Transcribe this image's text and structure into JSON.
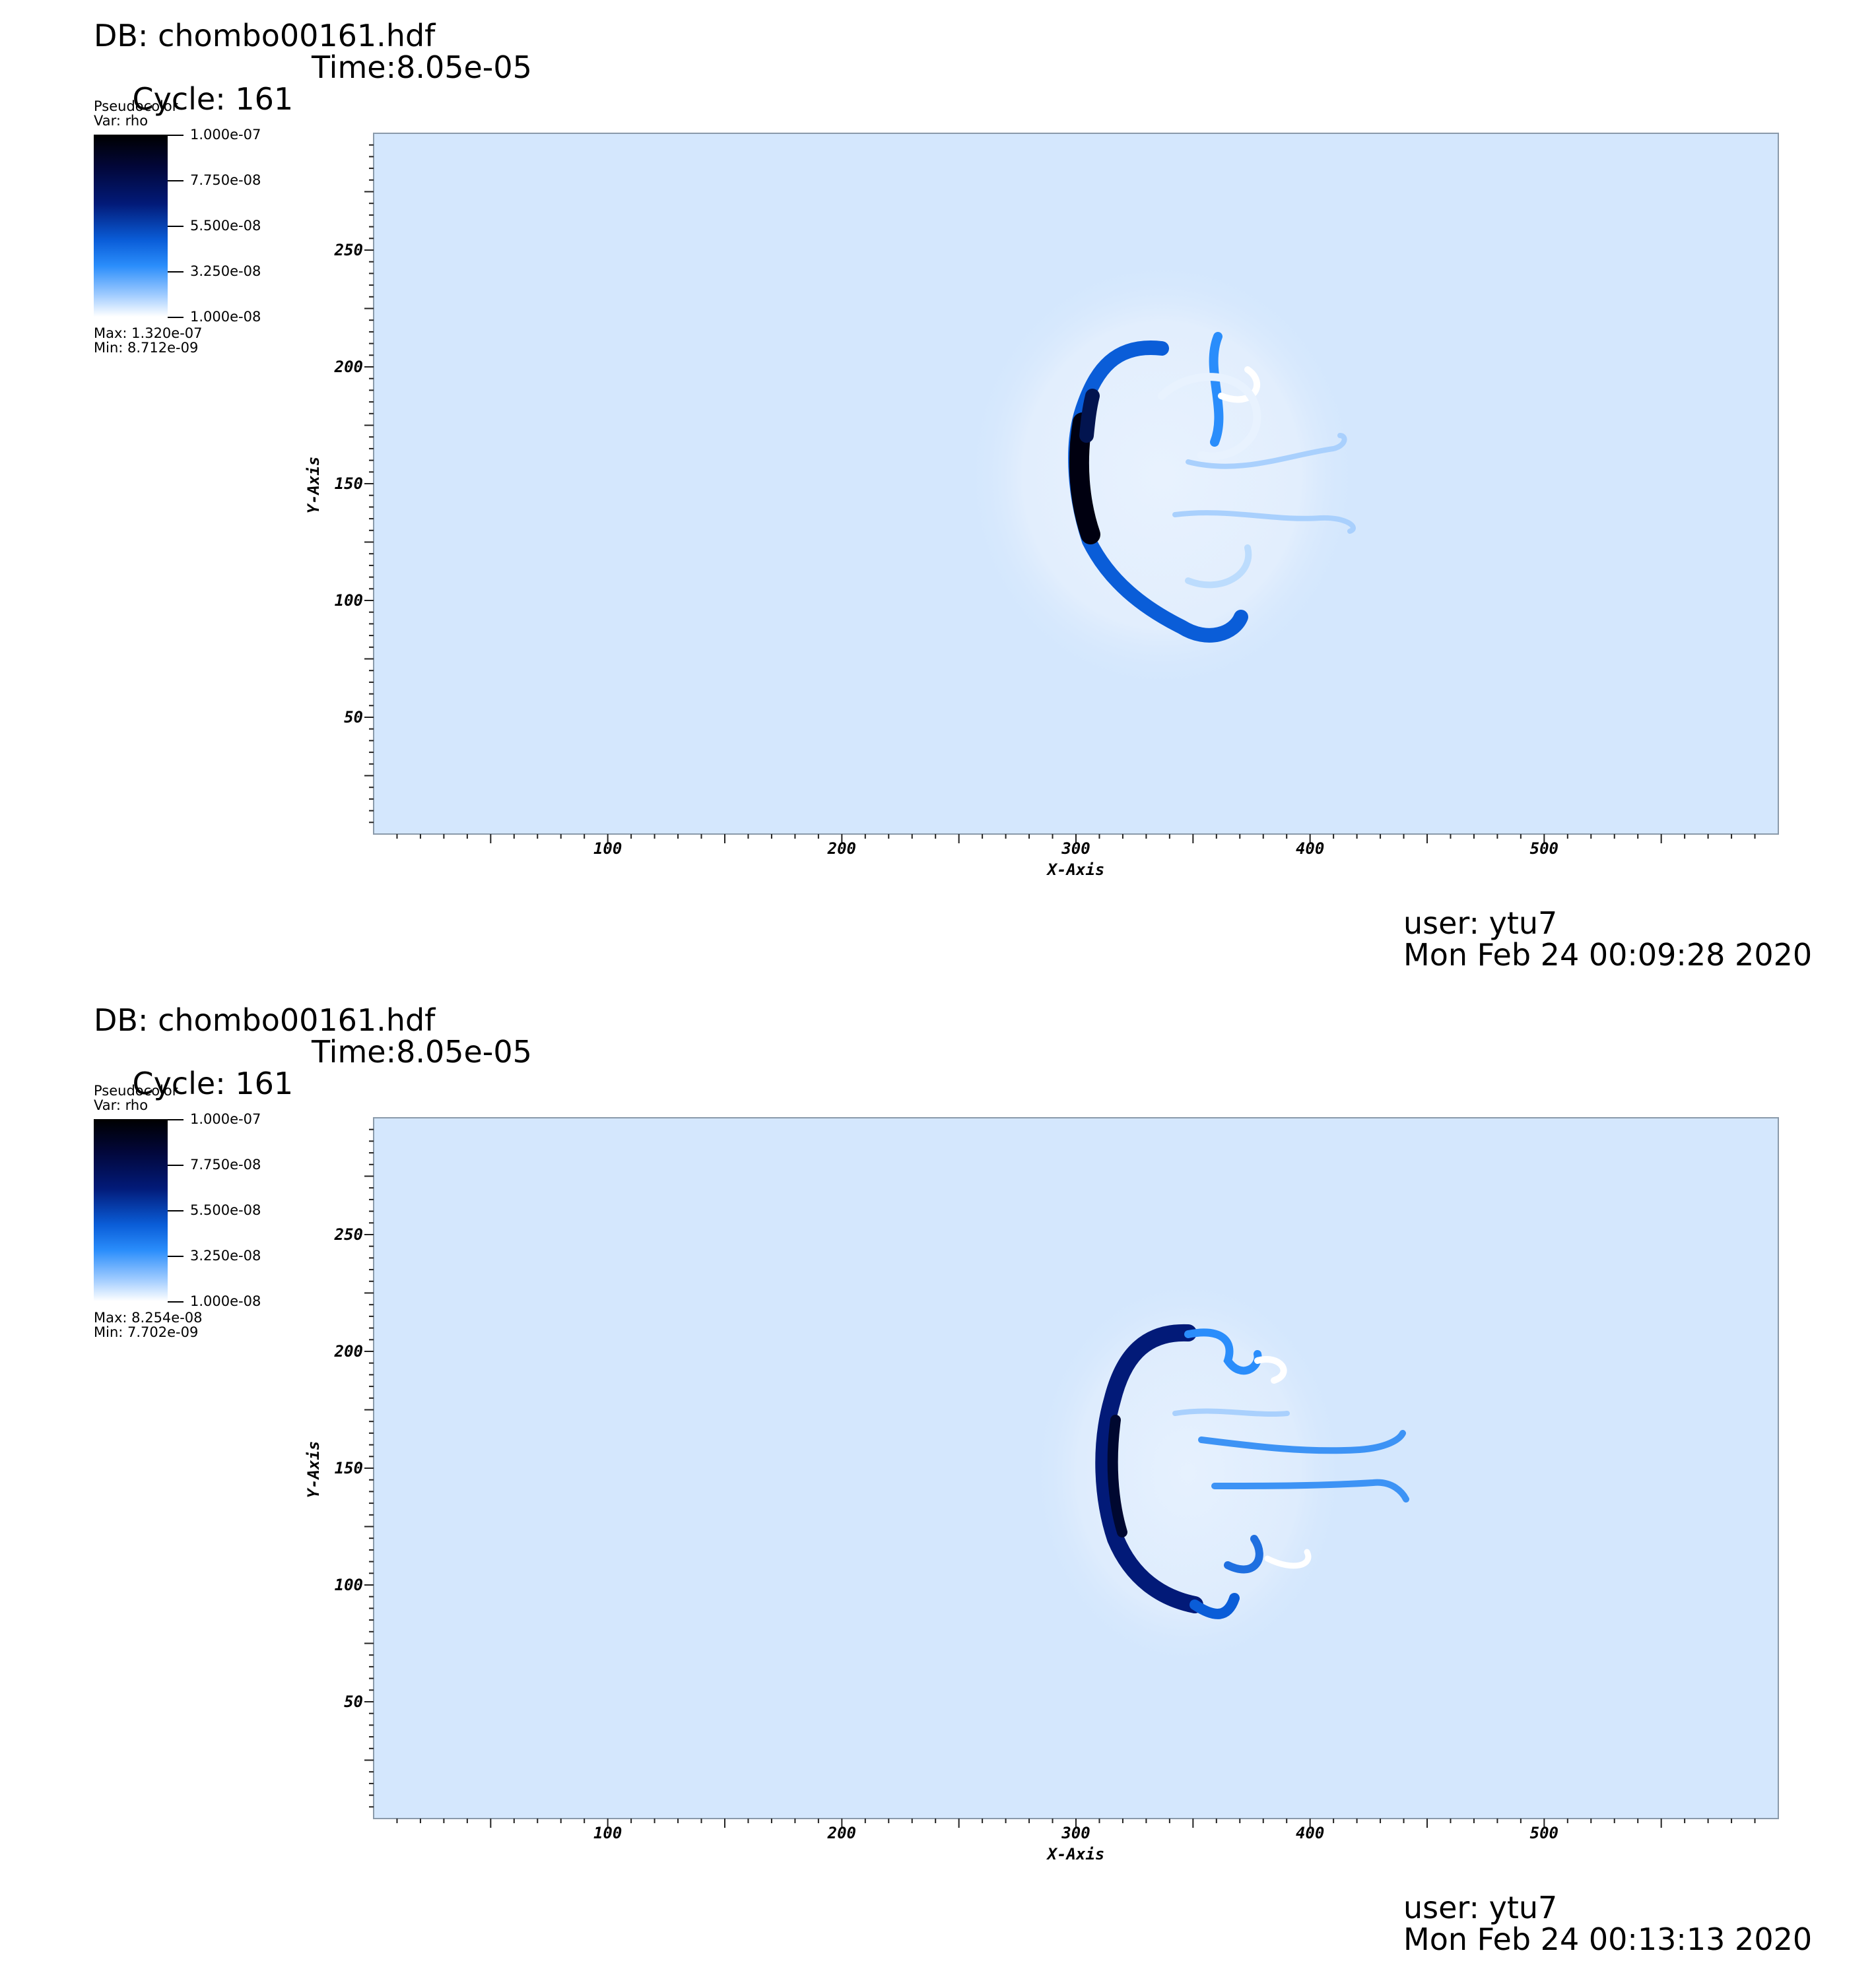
{
  "chart_data": [
    {
      "type": "heatmap",
      "header": {
        "db": "DB: chombo00161.hdf",
        "cycle": "Cycle: 161",
        "time": "Time:8.05e-05"
      },
      "legend": {
        "plot_type": "Pseudocolor",
        "var": "Var: rho",
        "ticks": [
          "1.000e-07",
          "7.750e-08",
          "5.500e-08",
          "3.250e-08",
          "1.000e-08"
        ],
        "max": "Max:  1.320e-07",
        "min": "Min:  8.712e-09"
      },
      "xlabel": "X-Axis",
      "ylabel": "Y-Axis",
      "xticks": [
        "100",
        "200",
        "300",
        "400",
        "500"
      ],
      "yticks": [
        "50",
        "100",
        "150",
        "200",
        "250"
      ],
      "xlim": [
        0,
        600
      ],
      "ylim": [
        0,
        300
      ],
      "footer": {
        "user": "user: ytu7",
        "date": "Mon Feb 24 00:09:28 2020"
      }
    },
    {
      "type": "heatmap",
      "header": {
        "db": "DB: chombo00161.hdf",
        "cycle": "Cycle: 161",
        "time": "Time:8.05e-05"
      },
      "legend": {
        "plot_type": "Pseudocolor",
        "var": "Var: rho",
        "ticks": [
          "1.000e-07",
          "7.750e-08",
          "5.500e-08",
          "3.250e-08",
          "1.000e-08"
        ],
        "max": "Max:  8.254e-08",
        "min": "Min:  7.702e-09"
      },
      "xlabel": "X-Axis",
      "ylabel": "Y-Axis",
      "xticks": [
        "100",
        "200",
        "300",
        "400",
        "500"
      ],
      "yticks": [
        "50",
        "100",
        "150",
        "200",
        "250"
      ],
      "xlim": [
        0,
        600
      ],
      "ylim": [
        0,
        300
      ],
      "footer": {
        "user": "user: ytu7",
        "date": "Mon Feb 24 00:13:13 2020"
      }
    }
  ],
  "colors": {
    "background_field": "#d4e7fd",
    "colormap_high": "#000000",
    "colormap_mid": "#0a5dd8",
    "colormap_low": "#ffffff"
  }
}
